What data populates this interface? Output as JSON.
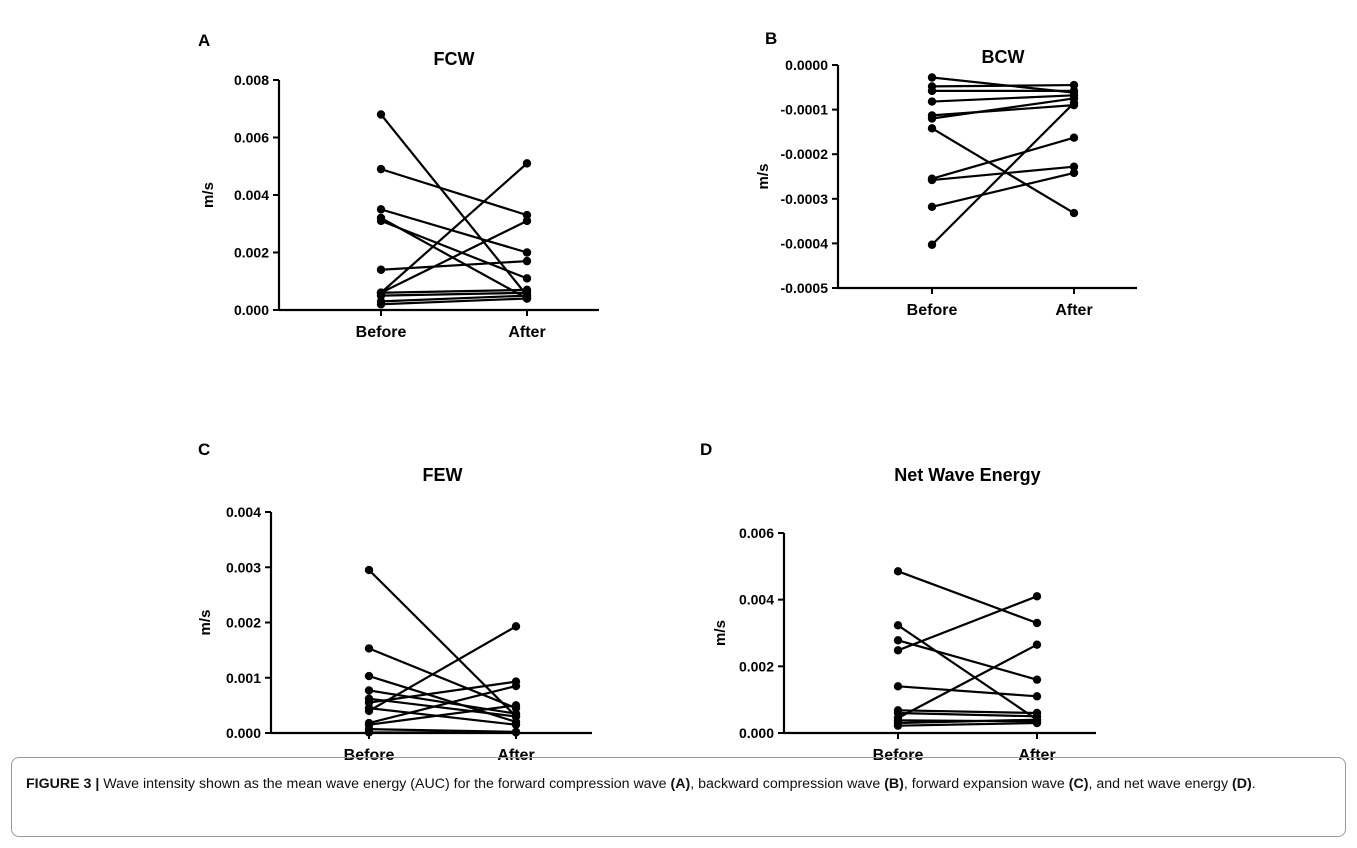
{
  "caption": {
    "label": "FIGURE 3 |",
    "parts": [
      {
        "t": " Wave intensity shown as the mean wave energy (AUC) for the forward compression wave ",
        "b": false
      },
      {
        "t": "(A)",
        "b": true
      },
      {
        "t": ", backward compression wave ",
        "b": false
      },
      {
        "t": "(B)",
        "b": true
      },
      {
        "t": ", forward expansion wave ",
        "b": false
      },
      {
        "t": "(C)",
        "b": true
      },
      {
        "t": ", and net wave energy ",
        "b": false
      },
      {
        "t": "(D)",
        "b": true
      },
      {
        "t": ".",
        "b": false
      }
    ]
  },
  "chart_data": [
    {
      "panel": "A",
      "type": "line",
      "title": "FCW",
      "xlabel": "",
      "ylabel": "m/s",
      "categories": [
        "Before",
        "After"
      ],
      "ylim": [
        0,
        0.008
      ],
      "yticks": [
        0.0,
        0.002,
        0.004,
        0.006,
        0.008
      ],
      "ytick_labels": [
        "0.000",
        "0.002",
        "0.004",
        "0.006",
        "0.008"
      ],
      "grid": false,
      "series": [
        {
          "values": [
            0.0068,
            0.0005
          ]
        },
        {
          "values": [
            0.0049,
            0.0033
          ]
        },
        {
          "values": [
            0.0035,
            0.002
          ]
        },
        {
          "values": [
            0.0032,
            0.0004
          ]
        },
        {
          "values": [
            0.0031,
            0.0011
          ]
        },
        {
          "values": [
            0.0014,
            0.0017
          ]
        },
        {
          "values": [
            0.0006,
            0.0051
          ]
        },
        {
          "values": [
            0.0006,
            0.0031
          ]
        },
        {
          "values": [
            0.0006,
            0.0007
          ]
        },
        {
          "values": [
            0.0005,
            0.0006
          ]
        },
        {
          "values": [
            0.0003,
            0.0005
          ]
        },
        {
          "values": [
            0.0002,
            0.0004
          ]
        }
      ]
    },
    {
      "panel": "B",
      "type": "line",
      "title": "BCW",
      "xlabel": "",
      "ylabel": "m/s",
      "categories": [
        "Before",
        "After"
      ],
      "ylim": [
        -0.0005,
        0.0
      ],
      "yticks": [
        -0.0005,
        -0.0004,
        -0.0003,
        -0.0002,
        -0.0001,
        0.0
      ],
      "ytick_labels": [
        "-0.0005",
        "-0.0004",
        "-0.0003",
        "-0.0002",
        "-0.0001",
        "0.0000"
      ],
      "grid": false,
      "series": [
        {
          "values": [
            -2.8e-05,
            -6.2e-05
          ]
        },
        {
          "values": [
            -4.8e-05,
            -4.5e-05
          ]
        },
        {
          "values": [
            -5.8e-05,
            -5.8e-05
          ]
        },
        {
          "values": [
            -8.2e-05,
            -6.8e-05
          ]
        },
        {
          "values": [
            -0.000113,
            -9e-05
          ]
        },
        {
          "values": [
            -0.00012,
            -7.5e-05
          ]
        },
        {
          "values": [
            -0.000142,
            -0.000332
          ]
        },
        {
          "values": [
            -0.000255,
            -0.000163
          ]
        },
        {
          "values": [
            -0.000258,
            -0.000228
          ]
        },
        {
          "values": [
            -0.000318,
            -0.000242
          ]
        },
        {
          "values": [
            -0.000403,
            -8.5e-05
          ]
        }
      ]
    },
    {
      "panel": "C",
      "type": "line",
      "title": "FEW",
      "xlabel": "",
      "ylabel": "m/s",
      "categories": [
        "Before",
        "After"
      ],
      "ylim": [
        0,
        0.004
      ],
      "yticks": [
        0.0,
        0.001,
        0.002,
        0.003,
        0.004
      ],
      "ytick_labels": [
        "0.000",
        "0.001",
        "0.002",
        "0.003",
        "0.004"
      ],
      "grid": false,
      "series": [
        {
          "values": [
            0.00295,
            0.0003
          ]
        },
        {
          "values": [
            0.00153,
            0.00045
          ]
        },
        {
          "values": [
            0.00103,
            0.0002
          ]
        },
        {
          "values": [
            0.00077,
            0.00035
          ]
        },
        {
          "values": [
            0.00062,
            0.0003
          ]
        },
        {
          "values": [
            0.00055,
            0.00093
          ]
        },
        {
          "values": [
            0.00045,
            0.00015
          ]
        },
        {
          "values": [
            0.0004,
            0.00193
          ]
        },
        {
          "values": [
            0.00018,
            0.00085
          ]
        },
        {
          "values": [
            0.00015,
            0.0005
          ]
        },
        {
          "values": [
            7e-05,
            2e-05
          ]
        },
        {
          "values": [
            1e-05,
            1e-05
          ]
        }
      ]
    },
    {
      "panel": "D",
      "type": "line",
      "title": "Net Wave Energy",
      "xlabel": "",
      "ylabel": "m/s",
      "categories": [
        "Before",
        "After"
      ],
      "ylim": [
        0,
        0.006
      ],
      "yticks": [
        0.0,
        0.002,
        0.004,
        0.006
      ],
      "ytick_labels": [
        "0.000",
        "0.002",
        "0.004",
        "0.006"
      ],
      "grid": false,
      "series": [
        {
          "values": [
            0.00485,
            0.0033
          ]
        },
        {
          "values": [
            0.00323,
            0.0004
          ]
        },
        {
          "values": [
            0.00278,
            0.0016
          ]
        },
        {
          "values": [
            0.00248,
            0.0041
          ]
        },
        {
          "values": [
            0.0014,
            0.0011
          ]
        },
        {
          "values": [
            0.00068,
            0.0006
          ]
        },
        {
          "values": [
            0.0006,
            0.0005
          ]
        },
        {
          "values": [
            0.00045,
            0.00265
          ]
        },
        {
          "values": [
            0.00038,
            0.00035
          ]
        },
        {
          "values": [
            0.0003,
            0.0004
          ]
        },
        {
          "values": [
            0.00022,
            0.0003
          ]
        }
      ]
    }
  ]
}
